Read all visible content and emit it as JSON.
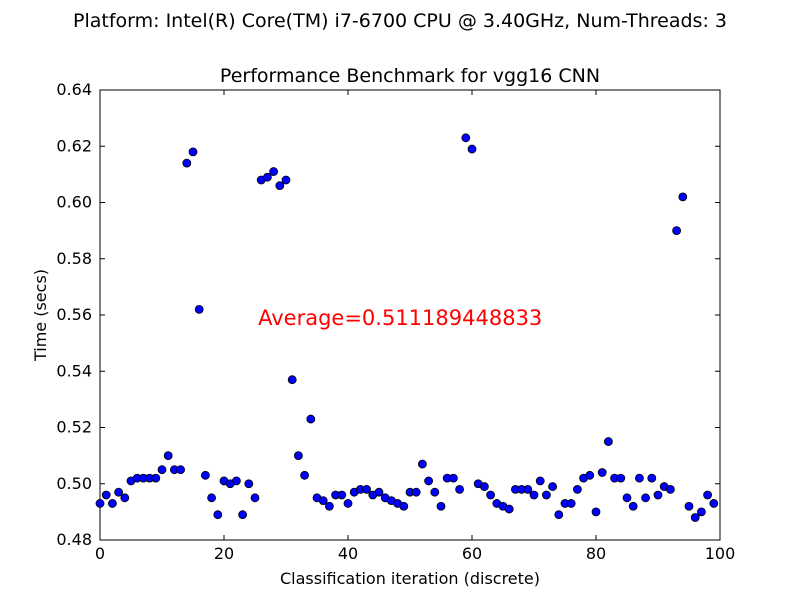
{
  "chart_data": {
    "type": "scatter",
    "suptitle": "Platform: Intel(R) Core(TM) i7-6700 CPU @ 3.40GHz, Num-Threads: 3",
    "title": "Performance Benchmark for vgg16 CNN",
    "xlabel": "Classification iteration (discrete)",
    "ylabel": "Time (secs)",
    "xlim": [
      0,
      100
    ],
    "ylim": [
      0.48,
      0.64
    ],
    "xticks": [
      0,
      20,
      40,
      60,
      80,
      100
    ],
    "yticks": [
      "0.48",
      "0.50",
      "0.52",
      "0.54",
      "0.56",
      "0.58",
      "0.60",
      "0.62",
      "0.64"
    ],
    "grid": false,
    "legend": "none",
    "marker_color": "#0000ff",
    "annotation": {
      "text": "Average=0.511189448833",
      "color": "#ff0000",
      "x": 25.5,
      "y": 0.559
    },
    "series": [
      {
        "x": [
          0,
          1,
          2,
          3,
          4,
          5,
          6,
          7,
          8,
          9,
          10,
          11,
          12,
          13,
          14,
          15,
          16,
          17,
          18,
          19,
          20,
          21,
          22,
          23,
          24,
          25,
          26,
          27,
          28,
          29,
          30,
          31,
          32,
          33,
          34,
          35,
          36,
          37,
          38,
          39,
          40,
          41,
          42,
          43,
          44,
          45,
          46,
          47,
          48,
          49,
          50,
          51,
          52,
          53,
          54,
          55,
          56,
          57,
          58,
          59,
          60,
          61,
          62,
          63,
          64,
          65,
          66,
          67,
          68,
          69,
          70,
          71,
          72,
          73,
          74,
          75,
          76,
          77,
          78,
          79,
          80,
          81,
          82,
          83,
          84,
          85,
          86,
          87,
          88,
          89,
          90,
          91,
          92,
          93,
          94,
          95,
          96,
          97,
          98,
          99
        ],
        "y": [
          0.493,
          0.496,
          0.493,
          0.497,
          0.495,
          0.501,
          0.502,
          0.502,
          0.502,
          0.502,
          0.505,
          0.51,
          0.505,
          0.505,
          0.614,
          0.618,
          0.562,
          0.503,
          0.495,
          0.489,
          0.501,
          0.5,
          0.501,
          0.489,
          0.5,
          0.495,
          0.608,
          0.609,
          0.611,
          0.606,
          0.608,
          0.537,
          0.51,
          0.503,
          0.523,
          0.495,
          0.494,
          0.492,
          0.496,
          0.496,
          0.493,
          0.497,
          0.498,
          0.498,
          0.496,
          0.497,
          0.495,
          0.494,
          0.493,
          0.492,
          0.497,
          0.497,
          0.507,
          0.501,
          0.497,
          0.492,
          0.502,
          0.502,
          0.498,
          0.623,
          0.619,
          0.5,
          0.499,
          0.496,
          0.493,
          0.492,
          0.491,
          0.498,
          0.498,
          0.498,
          0.496,
          0.501,
          0.496,
          0.499,
          0.489,
          0.493,
          0.493,
          0.498,
          0.502,
          0.503,
          0.49,
          0.504,
          0.515,
          0.502,
          0.502,
          0.495,
          0.492,
          0.502,
          0.495,
          0.502,
          0.496,
          0.499,
          0.498,
          0.59,
          0.602,
          0.492,
          0.488,
          0.49,
          0.496,
          0.493
        ]
      }
    ]
  }
}
